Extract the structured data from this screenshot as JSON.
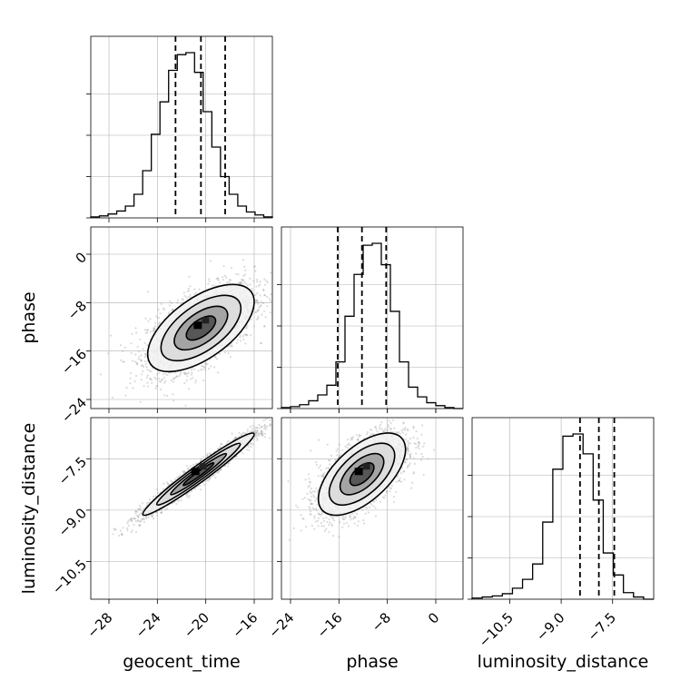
{
  "chart_data": {
    "type": "corner",
    "parameters": [
      "geocent_time",
      "phase",
      "luminosity_distance"
    ],
    "axes_labels": {
      "geocent_time": "geocent_time",
      "phase": "phase",
      "luminosity_distance": "luminosity_distance"
    },
    "ranges": {
      "geocent_time": [
        -29.5,
        -14.5
      ],
      "phase": [
        -25.5,
        4.5
      ],
      "luminosity_distance": [
        -11.6,
        -6.3
      ]
    },
    "ticks": {
      "geocent_time": [
        -28,
        -24,
        -20,
        -16
      ],
      "phase": [
        -24,
        -16,
        -8,
        0
      ],
      "luminosity_distance": [
        -10.5,
        -9.0,
        -7.5
      ]
    },
    "tick_labels": {
      "geocent_time": [
        "−28",
        "−24",
        "−20",
        "−16"
      ],
      "phase": [
        "−24",
        "−16",
        "−8",
        "0"
      ],
      "luminosity_distance": [
        "−10.5",
        "−9.0",
        "−7.5"
      ]
    },
    "histograms": {
      "geocent_time": {
        "bin_edges_range": [
          -29.5,
          -14.5
        ],
        "counts": [
          1,
          2,
          4,
          7,
          12,
          24,
          48,
          85,
          118,
          150,
          166,
          168,
          148,
          108,
          72,
          42,
          24,
          12,
          6,
          3,
          1
        ],
        "quantiles": [
          -22.5,
          -20.4,
          -18.4
        ]
      },
      "phase": {
        "bin_edges_range": [
          -25.5,
          4.5
        ],
        "counts": [
          1,
          2,
          4,
          8,
          14,
          24,
          48,
          95,
          138,
          168,
          170,
          148,
          100,
          48,
          22,
          12,
          6,
          3,
          1,
          0
        ],
        "quantiles": [
          -16.2,
          -12.2,
          -8.2
        ]
      },
      "luminosity_distance": {
        "bin_edges_range": [
          -11.6,
          -6.3
        ],
        "counts": [
          1,
          2,
          3,
          5,
          10,
          18,
          32,
          70,
          118,
          148,
          150,
          132,
          90,
          42,
          22,
          6,
          2,
          0
        ],
        "quantiles": [
          -8.45,
          -7.9,
          -7.45
        ]
      }
    },
    "pairs": [
      {
        "x": "geocent_time",
        "y": "phase",
        "mean": [
          -20.4,
          -12.2
        ],
        "std": [
          2.2,
          3.6
        ],
        "rho": 0.6
      },
      {
        "x": "geocent_time",
        "y": "luminosity_distance",
        "mean": [
          -20.6,
          -7.95
        ],
        "std": [
          2.3,
          0.6
        ],
        "rho": 0.97
      },
      {
        "x": "phase",
        "y": "luminosity_distance",
        "mean": [
          -12.2,
          -7.95
        ],
        "std": [
          3.6,
          0.6
        ],
        "rho": 0.6
      }
    ],
    "contour_levels": [
      "0.5-sigma",
      "1-sigma",
      "1.5-sigma",
      "2-sigma"
    ],
    "colors": {
      "line": "#000000",
      "points": "#999999",
      "grid": "#b0b0b0",
      "frame": "#000000"
    },
    "grid": true
  }
}
